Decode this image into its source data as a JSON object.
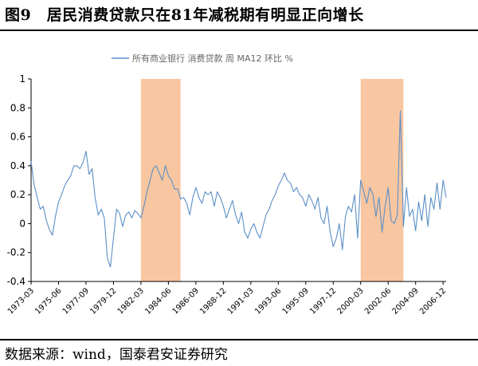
{
  "figure": {
    "title": "图9　居民消费贷款只在81年减税期有明显正向增长",
    "source": "数据来源：wind，国泰君安证券研究"
  },
  "chart_data": {
    "type": "line",
    "title": "",
    "xlabel": "",
    "ylabel": "",
    "ylim": [
      -0.4,
      1.0
    ],
    "yticks": [
      "1",
      "0.8",
      "0.6",
      "0.4",
      "0.2",
      "0",
      "-0.2",
      "-0.4"
    ],
    "xlim": [
      "1973-03",
      "2007-03"
    ],
    "xticks": [
      "1973-03",
      "1975-06",
      "1977-09",
      "1979-12",
      "1982-03",
      "1984-06",
      "1986-09",
      "1988-12",
      "1991-03",
      "1993-06",
      "1995-09",
      "1997-12",
      "2000-03",
      "2002-06",
      "2004-09",
      "2006-12"
    ],
    "grid": false,
    "legend": {
      "position": "top-center",
      "entries": [
        "所有商业银行 消费贷款 周 MA12 环比 %"
      ]
    },
    "line_color": "#5b8fc7",
    "shaded_color": "#f8c6a0",
    "shaded_periods": [
      {
        "start": "1982-03",
        "end": "1985-06"
      },
      {
        "start": "2000-03",
        "end": "2003-09"
      }
    ],
    "series": [
      {
        "name": "所有商业银行 消费贷款 周 MA12 环比 %",
        "x": [
          "1973-03",
          "1973-06",
          "1973-09",
          "1973-12",
          "1974-03",
          "1974-06",
          "1974-09",
          "1974-12",
          "1975-03",
          "1975-06",
          "1975-09",
          "1975-12",
          "1976-03",
          "1976-06",
          "1976-09",
          "1976-12",
          "1977-03",
          "1977-06",
          "1977-09",
          "1977-12",
          "1978-03",
          "1978-06",
          "1978-09",
          "1978-12",
          "1979-03",
          "1979-06",
          "1979-09",
          "1979-12",
          "1980-03",
          "1980-06",
          "1980-09",
          "1980-12",
          "1981-03",
          "1981-06",
          "1981-09",
          "1981-12",
          "1982-03",
          "1982-06",
          "1982-09",
          "1982-12",
          "1983-03",
          "1983-06",
          "1983-09",
          "1983-12",
          "1984-03",
          "1984-06",
          "1984-09",
          "1984-12",
          "1985-03",
          "1985-06",
          "1985-09",
          "1985-12",
          "1986-03",
          "1986-06",
          "1986-09",
          "1986-12",
          "1987-03",
          "1987-06",
          "1987-09",
          "1987-12",
          "1988-03",
          "1988-06",
          "1988-09",
          "1988-12",
          "1989-03",
          "1989-06",
          "1989-09",
          "1989-12",
          "1990-03",
          "1990-06",
          "1990-09",
          "1990-12",
          "1991-03",
          "1991-06",
          "1991-09",
          "1991-12",
          "1992-03",
          "1992-06",
          "1992-09",
          "1992-12",
          "1993-03",
          "1993-06",
          "1993-09",
          "1993-12",
          "1994-03",
          "1994-06",
          "1994-09",
          "1994-12",
          "1995-03",
          "1995-06",
          "1995-09",
          "1995-12",
          "1996-03",
          "1996-06",
          "1996-09",
          "1996-12",
          "1997-03",
          "1997-06",
          "1997-09",
          "1997-12",
          "1998-03",
          "1998-06",
          "1998-09",
          "1998-12",
          "1999-03",
          "1999-06",
          "1999-09",
          "1999-12",
          "2000-03",
          "2000-06",
          "2000-09",
          "2000-12",
          "2001-03",
          "2001-06",
          "2001-09",
          "2001-12",
          "2002-03",
          "2002-06",
          "2002-09",
          "2002-12",
          "2003-03",
          "2003-06",
          "2003-09",
          "2003-12",
          "2004-03",
          "2004-06",
          "2004-09",
          "2004-12",
          "2005-03",
          "2005-06",
          "2005-09",
          "2005-12",
          "2006-03",
          "2006-06",
          "2006-09",
          "2006-12",
          "2007-03"
        ],
        "y": [
          0.43,
          0.27,
          0.18,
          0.1,
          0.12,
          0.02,
          -0.04,
          -0.08,
          0.05,
          0.15,
          0.2,
          0.26,
          0.3,
          0.33,
          0.4,
          0.4,
          0.38,
          0.42,
          0.5,
          0.34,
          0.38,
          0.18,
          0.06,
          0.1,
          0.04,
          -0.24,
          -0.3,
          -0.1,
          0.1,
          0.07,
          -0.02,
          0.06,
          0.08,
          0.04,
          0.09,
          0.07,
          0.04,
          0.12,
          0.22,
          0.3,
          0.38,
          0.4,
          0.35,
          0.3,
          0.4,
          0.33,
          0.3,
          0.24,
          0.24,
          0.17,
          0.18,
          0.14,
          0.06,
          0.18,
          0.25,
          0.18,
          0.14,
          0.22,
          0.2,
          0.22,
          0.12,
          0.22,
          0.18,
          0.12,
          0.04,
          0.1,
          0.16,
          0.06,
          0.0,
          0.08,
          -0.06,
          -0.1,
          -0.04,
          0.0,
          -0.06,
          -0.1,
          -0.02,
          0.06,
          0.1,
          0.16,
          0.2,
          0.26,
          0.3,
          0.35,
          0.3,
          0.28,
          0.22,
          0.25,
          0.2,
          0.18,
          0.12,
          0.2,
          0.16,
          0.1,
          0.18,
          0.04,
          0.0,
          0.12,
          -0.06,
          -0.16,
          -0.1,
          0.0,
          -0.18,
          0.05,
          0.12,
          0.08,
          0.2,
          -0.1,
          0.3,
          0.22,
          0.14,
          0.25,
          0.2,
          0.05,
          0.18,
          -0.06,
          0.12,
          0.25,
          0.02,
          0.0,
          0.06,
          0.78,
          -0.02,
          0.25,
          0.05,
          0.1,
          -0.05,
          0.15,
          0.02,
          0.2,
          -0.02,
          0.18,
          0.1,
          0.28,
          0.1,
          0.3,
          0.18
        ]
      }
    ]
  }
}
